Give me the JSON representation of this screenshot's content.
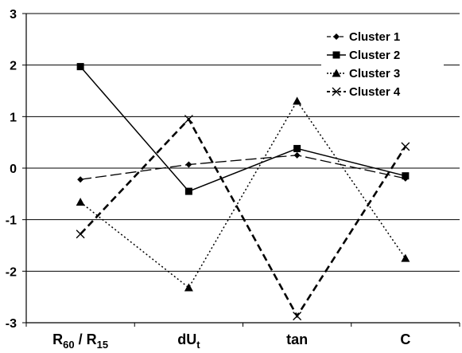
{
  "chart_data": {
    "type": "line",
    "title": "",
    "xlabel": "",
    "ylabel": "",
    "categories": [
      {
        "base": "R",
        "sub": "60",
        "sep": " / ",
        "base2": "R",
        "sub2": "15"
      },
      {
        "base": "dU",
        "sub": "t"
      },
      {
        "base": "tan"
      },
      {
        "base": "C"
      }
    ],
    "ylim": [
      -3,
      3
    ],
    "yticks": [
      "3",
      "2",
      "1",
      "0",
      "-1",
      "-2",
      "-3"
    ],
    "grid": true,
    "legend_position": "top-right",
    "series": [
      {
        "name": "Cluster 1",
        "marker": "diamond",
        "line": "long-dash-thin",
        "color": "#000000",
        "values": [
          -0.22,
          0.07,
          0.25,
          -0.2
        ]
      },
      {
        "name": "Cluster 2",
        "marker": "square",
        "line": "solid",
        "color": "#000000",
        "values": [
          1.97,
          -0.45,
          0.38,
          -0.15
        ]
      },
      {
        "name": "Cluster 3",
        "marker": "triangle",
        "line": "dotted",
        "color": "#000000",
        "values": [
          -0.66,
          -2.32,
          1.3,
          -1.75
        ]
      },
      {
        "name": "Cluster 4",
        "marker": "x",
        "line": "bold-dash",
        "color": "#000000",
        "values": [
          -1.28,
          0.95,
          -2.87,
          0.42
        ]
      }
    ]
  }
}
